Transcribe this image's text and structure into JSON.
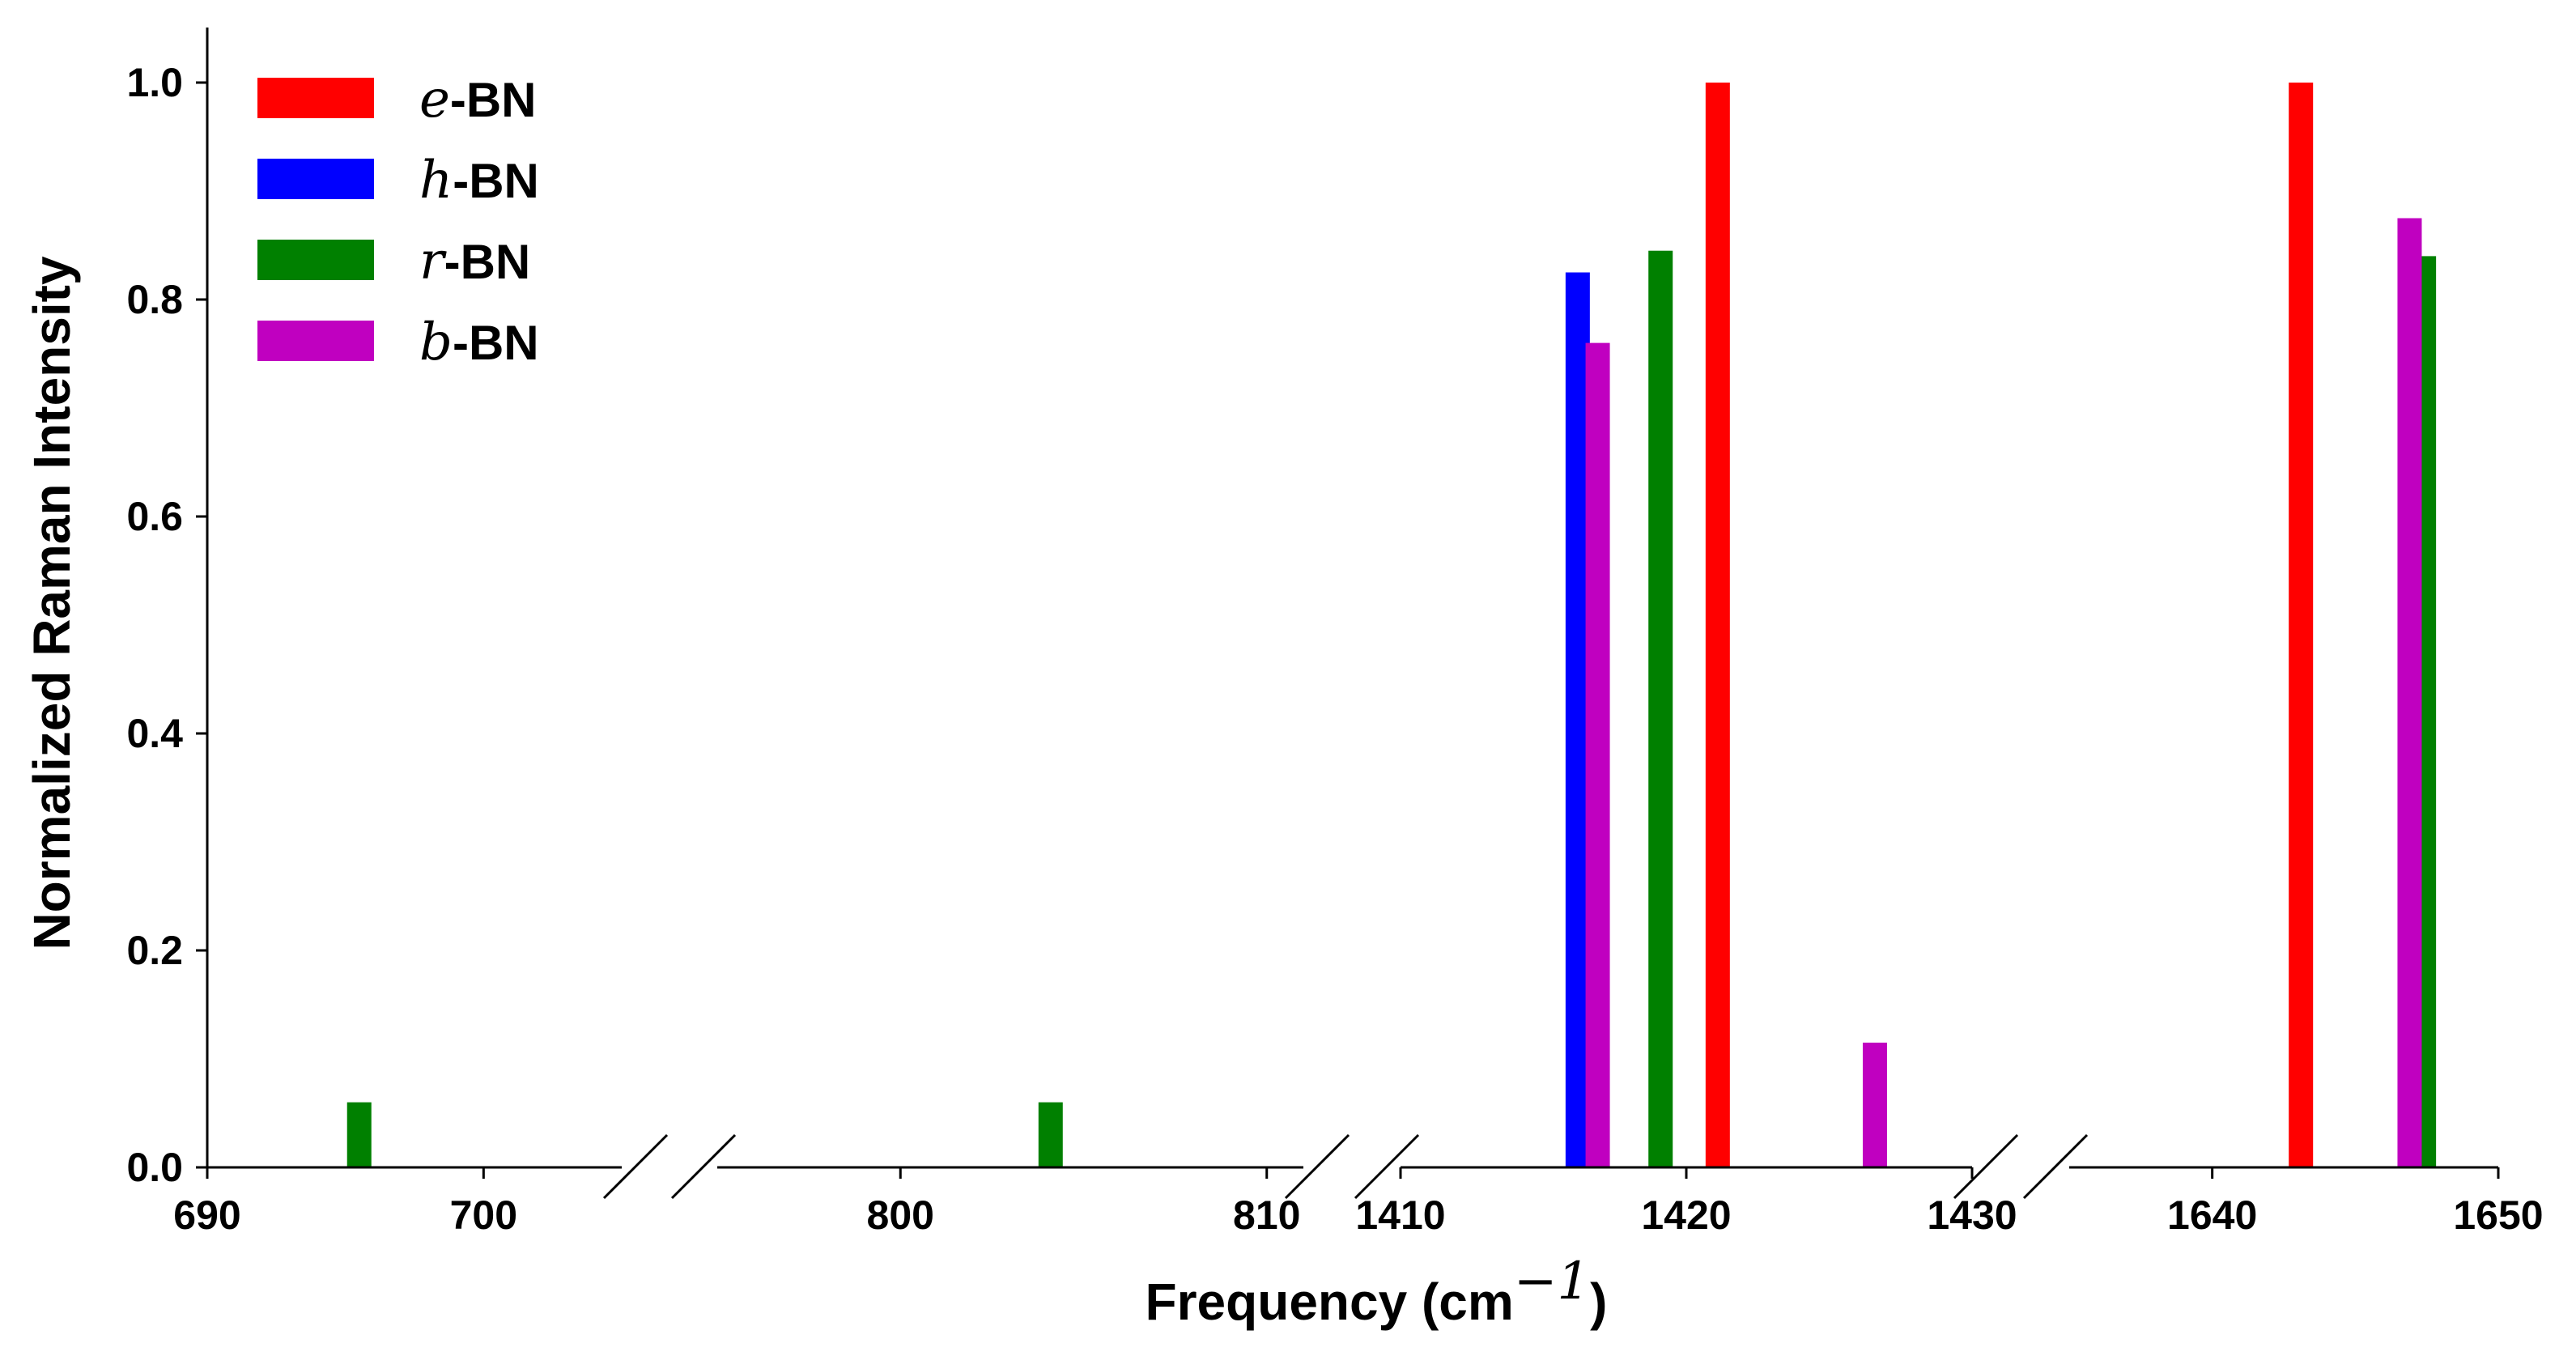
{
  "chart_data": {
    "type": "bar",
    "title": "",
    "xlabel": "Frequency (cm",
    "xlabel_sup": "−1",
    "xlabel_close": ")",
    "ylabel": "Normalized Raman Intensity",
    "ylim": [
      0,
      1.05
    ],
    "yticks": [
      "0.0",
      "0.2",
      "0.4",
      "0.6",
      "0.8",
      "1.0"
    ],
    "x_axis_broken": true,
    "grid": false,
    "legend_position": "top-left",
    "segments": [
      {
        "range": [
          690,
          705
        ],
        "ticks": [
          690,
          700
        ],
        "tick_labels": [
          "690",
          "700"
        ]
      },
      {
        "range": [
          795,
          811
        ],
        "ticks": [
          800,
          810
        ],
        "tick_labels": [
          "800",
          "810"
        ]
      },
      {
        "range": [
          1410,
          1430
        ],
        "ticks": [
          1410,
          1420,
          1430
        ],
        "tick_labels": [
          "1410",
          "1420",
          "1430"
        ]
      },
      {
        "range": [
          1635,
          1650
        ],
        "ticks": [
          1640,
          1650
        ],
        "tick_labels": [
          "1640",
          "1650"
        ]
      }
    ],
    "series": [
      {
        "name": "e",
        "suffix": "-BN",
        "color": "#ff0000",
        "points": [
          [
            1421.1,
            1.0
          ],
          [
            1643.1,
            1.0
          ]
        ]
      },
      {
        "name": "h",
        "suffix": "-BN",
        "color": "#0000ff",
        "points": [
          [
            1416.2,
            0.825
          ]
        ]
      },
      {
        "name": "r",
        "suffix": "-BN",
        "color": "#008000",
        "points": [
          [
            695.5,
            0.06
          ],
          [
            804.1,
            0.06
          ],
          [
            1419.1,
            0.845
          ],
          [
            1647.4,
            0.84
          ]
        ]
      },
      {
        "name": "b",
        "suffix": "-BN",
        "color": "#c000c0",
        "points": [
          [
            1416.9,
            0.76
          ],
          [
            1426.6,
            0.115
          ],
          [
            1646.9,
            0.875
          ]
        ]
      }
    ]
  }
}
